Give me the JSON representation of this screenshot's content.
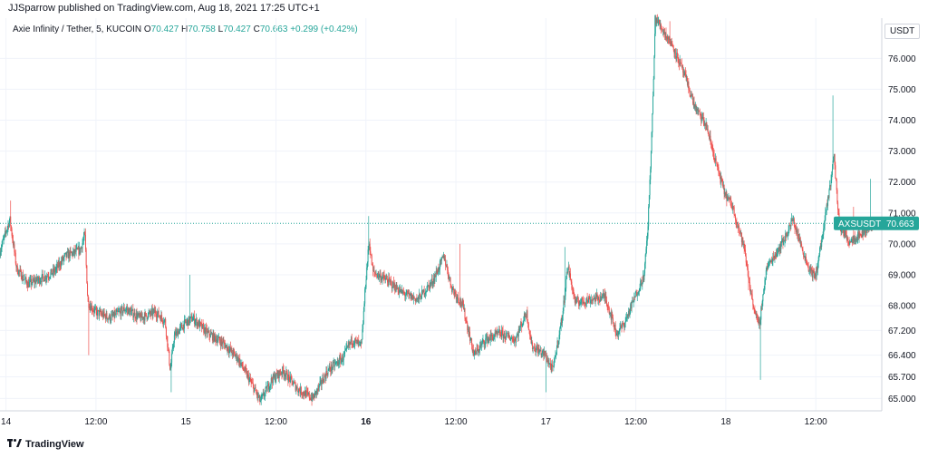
{
  "header": {
    "published": "JJSparrow published on TradingView.com, Aug 18, 2021 17:25 UTC+1",
    "symbol": "Axie Infinity / Tether, 5, KUCOIN",
    "ohlc": {
      "o_label": "O",
      "o": "70.427",
      "h_label": "H",
      "h": "70.758",
      "l_label": "L",
      "l": "70.427",
      "c_label": "C",
      "c": "70.663",
      "change": "+0.299 (+0.42%)"
    },
    "currency": "USDT"
  },
  "price_badge": {
    "ticker": "AXSUSDT",
    "value": "70.663",
    "price": 70.663
  },
  "footer": {
    "brand": "TradingView",
    "logo_icon": "tradingview-logo-icon"
  },
  "colors": {
    "up": "#26a69a",
    "down": "#ef5350",
    "grid": "#f0f3fa",
    "axis_text": "#131722"
  },
  "chart_data": {
    "type": "candlestick",
    "symbol": "AXSUSDT",
    "interval": "5",
    "ylim": [
      64.6,
      77.3
    ],
    "y_ticks": [
      {
        "label": "76.000",
        "value": 76.0
      },
      {
        "label": "75.000",
        "value": 75.0
      },
      {
        "label": "74.000",
        "value": 74.0
      },
      {
        "label": "73.000",
        "value": 73.0
      },
      {
        "label": "72.000",
        "value": 72.0
      },
      {
        "label": "71.000",
        "value": 71.0
      },
      {
        "label": "70.000",
        "value": 70.0
      },
      {
        "label": "69.000",
        "value": 69.0
      },
      {
        "label": "68.000",
        "value": 68.0
      },
      {
        "label": "67.200",
        "value": 67.2
      },
      {
        "label": "66.400",
        "value": 66.4
      },
      {
        "label": "65.700",
        "value": 65.7
      },
      {
        "label": "65.000",
        "value": 65.0
      }
    ],
    "x_ticks": [
      {
        "label": "14",
        "t": 0,
        "bold": false
      },
      {
        "label": "12:00",
        "t": 12,
        "bold": false
      },
      {
        "label": "15",
        "t": 24,
        "bold": false
      },
      {
        "label": "12:00",
        "t": 36,
        "bold": false
      },
      {
        "label": "16",
        "t": 48,
        "bold": true
      },
      {
        "label": "12:00",
        "t": 60,
        "bold": false
      },
      {
        "label": "17",
        "t": 72,
        "bold": false
      },
      {
        "label": "12:00",
        "t": 84,
        "bold": false
      },
      {
        "label": "18",
        "t": 96,
        "bold": false
      },
      {
        "label": "12:00",
        "t": 108,
        "bold": false
      }
    ],
    "xlim_hours": [
      -0.8,
      116.8
    ],
    "grid": true,
    "path": [
      [
        -0.8,
        69.7
      ],
      [
        0.6,
        70.8
      ],
      [
        1.5,
        69.2
      ],
      [
        3,
        68.7
      ],
      [
        5,
        68.9
      ],
      [
        6.5,
        69.1
      ],
      [
        8,
        69.6
      ],
      [
        10,
        69.8
      ],
      [
        10.6,
        70.3
      ],
      [
        11,
        68.1
      ],
      [
        12,
        67.8
      ],
      [
        14,
        67.6
      ],
      [
        16,
        67.9
      ],
      [
        18,
        67.6
      ],
      [
        20,
        67.8
      ],
      [
        21.3,
        67.5
      ],
      [
        22,
        65.9
      ],
      [
        22.5,
        67.0
      ],
      [
        23.8,
        67.4
      ],
      [
        25,
        67.6
      ],
      [
        27,
        67.1
      ],
      [
        29,
        66.8
      ],
      [
        31,
        66.3
      ],
      [
        33,
        65.4
      ],
      [
        34,
        64.9
      ],
      [
        35.5,
        65.6
      ],
      [
        37,
        65.9
      ],
      [
        39,
        65.3
      ],
      [
        41,
        65.0
      ],
      [
        43,
        65.9
      ],
      [
        45,
        66.3
      ],
      [
        46.2,
        66.9
      ],
      [
        47.5,
        66.7
      ],
      [
        48,
        68.6
      ],
      [
        48.5,
        70.1
      ],
      [
        49,
        69.1
      ],
      [
        51,
        68.8
      ],
      [
        53,
        68.4
      ],
      [
        55,
        68.2
      ],
      [
        57,
        68.8
      ],
      [
        58.5,
        69.6
      ],
      [
        59.5,
        68.6
      ],
      [
        61,
        68.0
      ],
      [
        62.5,
        66.4
      ],
      [
        64,
        66.9
      ],
      [
        66,
        67.1
      ],
      [
        68,
        66.9
      ],
      [
        69.5,
        67.8
      ],
      [
        70.2,
        66.7
      ],
      [
        72,
        66.4
      ],
      [
        73,
        65.9
      ],
      [
        74.3,
        67.7
      ],
      [
        75,
        69.3
      ],
      [
        76,
        68.1
      ],
      [
        78,
        68.2
      ],
      [
        80,
        68.3
      ],
      [
        81.5,
        67.1
      ],
      [
        82.5,
        67.4
      ],
      [
        84,
        68.3
      ],
      [
        85.2,
        69.0
      ],
      [
        85.7,
        70.6
      ],
      [
        86.2,
        73.5
      ],
      [
        86.7,
        77.3
      ],
      [
        89,
        76.4
      ],
      [
        90.5,
        75.5
      ],
      [
        92,
        74.4
      ],
      [
        93.5,
        73.8
      ],
      [
        95,
        72.4
      ],
      [
        96,
        71.6
      ],
      [
        97,
        71.2
      ],
      [
        98.5,
        69.9
      ],
      [
        99.5,
        68.3
      ],
      [
        100.5,
        67.3
      ],
      [
        101.5,
        69.2
      ],
      [
        102.5,
        69.6
      ],
      [
        104,
        70.2
      ],
      [
        105,
        70.8
      ],
      [
        107,
        69.3
      ],
      [
        108,
        68.9
      ],
      [
        109,
        70.3
      ],
      [
        110,
        71.9
      ],
      [
        110.5,
        72.9
      ],
      [
        111.2,
        70.6
      ],
      [
        112.5,
        70.1
      ],
      [
        114,
        70.3
      ],
      [
        115.6,
        70.66
      ]
    ],
    "spikes": [
      {
        "t": 0.6,
        "v": 71.4
      },
      {
        "t": 10.6,
        "v": 70.5
      },
      {
        "t": 11,
        "v": 66.4
      },
      {
        "t": 22,
        "v": 65.2
      },
      {
        "t": 24.5,
        "v": 69.0
      },
      {
        "t": 34,
        "v": 64.8
      },
      {
        "t": 48.4,
        "v": 70.9
      },
      {
        "t": 60.5,
        "v": 70.0
      },
      {
        "t": 72,
        "v": 65.2
      },
      {
        "t": 74.5,
        "v": 69.9
      },
      {
        "t": 85.5,
        "v": 70.2
      },
      {
        "t": 86.5,
        "v": 77.4
      },
      {
        "t": 88.5,
        "v": 77.2
      },
      {
        "t": 99,
        "v": 68.5
      },
      {
        "t": 100.6,
        "v": 65.6
      },
      {
        "t": 110.3,
        "v": 74.8
      },
      {
        "t": 113,
        "v": 71.2
      },
      {
        "t": 115.3,
        "v": 72.1
      }
    ],
    "last_price": 70.663
  }
}
